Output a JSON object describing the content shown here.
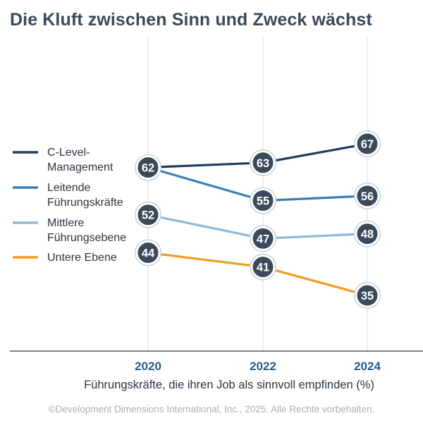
{
  "chart_data": {
    "type": "line",
    "title": "Die Kluft zwischen Sinn und Zweck wächst",
    "xlabel": "Führungskräfte, die ihren Job als sinnvoll empfinden (%)",
    "ylabel": "",
    "x": [
      "2020",
      "2022",
      "2024"
    ],
    "ylim": [
      28,
      78
    ],
    "grid": "vertical",
    "legend_position": "left",
    "series": [
      {
        "name_lines": [
          "C-Level-",
          "Management"
        ],
        "color": "#1f3d5c",
        "values": [
          62,
          63,
          67
        ]
      },
      {
        "name_lines": [
          "Leitende",
          "Führungskräfte"
        ],
        "color": "#3a7fba",
        "values": [
          62,
          55,
          56
        ]
      },
      {
        "name_lines": [
          "Mittlere",
          "Führungsebene"
        ],
        "color": "#8db9da",
        "values": [
          52,
          47,
          48
        ]
      },
      {
        "name_lines": [
          "Untere Ebene"
        ],
        "color": "#f39c1e",
        "values": [
          44,
          41,
          35
        ]
      }
    ],
    "marker_labels": [
      {
        "year": "2020",
        "value": 62,
        "series": [
          0,
          1
        ]
      },
      {
        "year": "2022",
        "value": 63,
        "series": [
          0
        ]
      },
      {
        "year": "2024",
        "value": 67,
        "series": [
          0
        ]
      },
      {
        "year": "2022",
        "value": 55,
        "series": [
          1
        ]
      },
      {
        "year": "2024",
        "value": 56,
        "series": [
          1
        ]
      },
      {
        "year": "2020",
        "value": 52,
        "series": [
          2
        ]
      },
      {
        "year": "2022",
        "value": 47,
        "series": [
          2
        ]
      },
      {
        "year": "2024",
        "value": 48,
        "series": [
          2
        ]
      },
      {
        "year": "2020",
        "value": 44,
        "series": [
          3
        ]
      },
      {
        "year": "2022",
        "value": 41,
        "series": [
          3
        ]
      },
      {
        "year": "2024",
        "value": 35,
        "series": [
          3
        ]
      }
    ],
    "colors": {
      "axis": "#2b3a4a",
      "grid": "#dfe2e6",
      "tick_label": "#2c5a88",
      "marker_fill": "#3b4a5a",
      "marker_ring": "#c7d0d8",
      "marker_text": "#ffffff",
      "legend_text": "#2a3440"
    }
  },
  "footer": {
    "credit": "©Development Dimensions International, Inc., 2025. Alle Rechte vorbehalten."
  }
}
